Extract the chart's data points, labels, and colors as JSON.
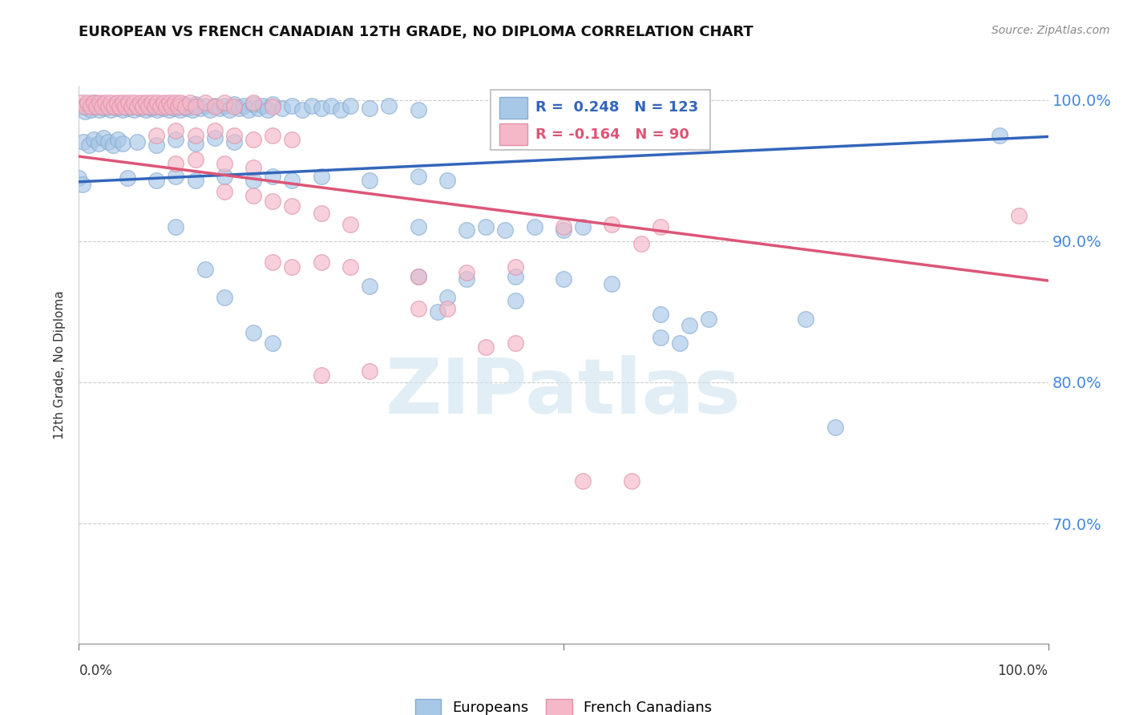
{
  "title": "EUROPEAN VS FRENCH CANADIAN 12TH GRADE, NO DIPLOMA CORRELATION CHART",
  "source": "Source: ZipAtlas.com",
  "ylabel": "12th Grade, No Diploma",
  "watermark": "ZIPatlas",
  "xlim": [
    0.0,
    1.0
  ],
  "ylim": [
    0.615,
    1.01
  ],
  "yticks": [
    0.7,
    0.8,
    0.9,
    1.0
  ],
  "ytick_labels": [
    "70.0%",
    "80.0%",
    "90.0%",
    "100.0%"
  ],
  "blue_R": 0.248,
  "blue_N": 123,
  "pink_R": -0.164,
  "pink_N": 90,
  "blue_color": "#a8c8e8",
  "pink_color": "#f4b8c8",
  "blue_edge_color": "#88aad0",
  "pink_edge_color": "#e090a8",
  "blue_line_color": "#3366bb",
  "pink_line_color": "#dd5577",
  "blue_line_y0": 0.942,
  "blue_line_y1": 0.974,
  "pink_line_y0": 0.96,
  "pink_line_y1": 0.872,
  "blue_scatter": [
    [
      0.003,
      0.995
    ],
    [
      0.006,
      0.992
    ],
    [
      0.009,
      0.997
    ],
    [
      0.012,
      0.993
    ],
    [
      0.015,
      0.998
    ],
    [
      0.018,
      0.995
    ],
    [
      0.021,
      0.993
    ],
    [
      0.024,
      0.997
    ],
    [
      0.027,
      0.994
    ],
    [
      0.03,
      0.996
    ],
    [
      0.033,
      0.993
    ],
    [
      0.036,
      0.997
    ],
    [
      0.039,
      0.994
    ],
    [
      0.042,
      0.996
    ],
    [
      0.045,
      0.993
    ],
    [
      0.048,
      0.997
    ],
    [
      0.051,
      0.994
    ],
    [
      0.054,
      0.996
    ],
    [
      0.057,
      0.993
    ],
    [
      0.06,
      0.996
    ],
    [
      0.063,
      0.994
    ],
    [
      0.066,
      0.997
    ],
    [
      0.069,
      0.993
    ],
    [
      0.072,
      0.996
    ],
    [
      0.075,
      0.994
    ],
    [
      0.078,
      0.996
    ],
    [
      0.081,
      0.993
    ],
    [
      0.084,
      0.997
    ],
    [
      0.087,
      0.994
    ],
    [
      0.09,
      0.996
    ],
    [
      0.093,
      0.993
    ],
    [
      0.096,
      0.997
    ],
    [
      0.099,
      0.994
    ],
    [
      0.102,
      0.996
    ],
    [
      0.105,
      0.993
    ],
    [
      0.108,
      0.997
    ],
    [
      0.111,
      0.994
    ],
    [
      0.114,
      0.996
    ],
    [
      0.117,
      0.993
    ],
    [
      0.12,
      0.997
    ],
    [
      0.125,
      0.994
    ],
    [
      0.13,
      0.996
    ],
    [
      0.135,
      0.993
    ],
    [
      0.14,
      0.996
    ],
    [
      0.145,
      0.994
    ],
    [
      0.15,
      0.996
    ],
    [
      0.155,
      0.993
    ],
    [
      0.16,
      0.997
    ],
    [
      0.165,
      0.994
    ],
    [
      0.17,
      0.996
    ],
    [
      0.175,
      0.993
    ],
    [
      0.18,
      0.997
    ],
    [
      0.185,
      0.994
    ],
    [
      0.19,
      0.996
    ],
    [
      0.195,
      0.993
    ],
    [
      0.2,
      0.997
    ],
    [
      0.21,
      0.994
    ],
    [
      0.22,
      0.996
    ],
    [
      0.23,
      0.993
    ],
    [
      0.24,
      0.996
    ],
    [
      0.25,
      0.994
    ],
    [
      0.26,
      0.996
    ],
    [
      0.27,
      0.993
    ],
    [
      0.28,
      0.996
    ],
    [
      0.3,
      0.994
    ],
    [
      0.32,
      0.996
    ],
    [
      0.35,
      0.993
    ],
    [
      0.005,
      0.97
    ],
    [
      0.01,
      0.968
    ],
    [
      0.015,
      0.972
    ],
    [
      0.02,
      0.969
    ],
    [
      0.025,
      0.973
    ],
    [
      0.03,
      0.97
    ],
    [
      0.035,
      0.968
    ],
    [
      0.04,
      0.972
    ],
    [
      0.045,
      0.969
    ],
    [
      0.06,
      0.97
    ],
    [
      0.08,
      0.968
    ],
    [
      0.1,
      0.972
    ],
    [
      0.12,
      0.969
    ],
    [
      0.14,
      0.973
    ],
    [
      0.16,
      0.97
    ],
    [
      0.0,
      0.945
    ],
    [
      0.004,
      0.94
    ],
    [
      0.05,
      0.945
    ],
    [
      0.08,
      0.943
    ],
    [
      0.1,
      0.946
    ],
    [
      0.12,
      0.943
    ],
    [
      0.15,
      0.946
    ],
    [
      0.18,
      0.943
    ],
    [
      0.2,
      0.946
    ],
    [
      0.22,
      0.943
    ],
    [
      0.25,
      0.946
    ],
    [
      0.3,
      0.943
    ],
    [
      0.35,
      0.946
    ],
    [
      0.38,
      0.943
    ],
    [
      0.35,
      0.91
    ],
    [
      0.4,
      0.908
    ],
    [
      0.42,
      0.91
    ],
    [
      0.44,
      0.908
    ],
    [
      0.47,
      0.91
    ],
    [
      0.5,
      0.908
    ],
    [
      0.52,
      0.91
    ],
    [
      0.35,
      0.875
    ],
    [
      0.4,
      0.873
    ],
    [
      0.45,
      0.875
    ],
    [
      0.5,
      0.873
    ],
    [
      0.55,
      0.87
    ],
    [
      0.6,
      0.848
    ],
    [
      0.65,
      0.845
    ],
    [
      0.62,
      0.828
    ],
    [
      0.75,
      0.845
    ],
    [
      0.78,
      0.768
    ],
    [
      0.95,
      0.975
    ],
    [
      0.1,
      0.91
    ],
    [
      0.13,
      0.88
    ],
    [
      0.15,
      0.86
    ],
    [
      0.37,
      0.85
    ],
    [
      0.38,
      0.86
    ],
    [
      0.45,
      0.858
    ],
    [
      0.18,
      0.835
    ],
    [
      0.2,
      0.828
    ],
    [
      0.3,
      0.868
    ],
    [
      0.6,
      0.832
    ],
    [
      0.63,
      0.84
    ]
  ],
  "pink_scatter": [
    [
      0.003,
      0.998
    ],
    [
      0.006,
      0.995
    ],
    [
      0.009,
      0.998
    ],
    [
      0.012,
      0.995
    ],
    [
      0.015,
      0.998
    ],
    [
      0.018,
      0.995
    ],
    [
      0.021,
      0.998
    ],
    [
      0.024,
      0.995
    ],
    [
      0.027,
      0.998
    ],
    [
      0.03,
      0.995
    ],
    [
      0.033,
      0.998
    ],
    [
      0.036,
      0.995
    ],
    [
      0.039,
      0.998
    ],
    [
      0.042,
      0.995
    ],
    [
      0.045,
      0.998
    ],
    [
      0.048,
      0.995
    ],
    [
      0.051,
      0.998
    ],
    [
      0.054,
      0.995
    ],
    [
      0.057,
      0.998
    ],
    [
      0.06,
      0.995
    ],
    [
      0.063,
      0.998
    ],
    [
      0.066,
      0.995
    ],
    [
      0.069,
      0.998
    ],
    [
      0.072,
      0.995
    ],
    [
      0.075,
      0.998
    ],
    [
      0.078,
      0.995
    ],
    [
      0.081,
      0.998
    ],
    [
      0.084,
      0.995
    ],
    [
      0.087,
      0.998
    ],
    [
      0.09,
      0.995
    ],
    [
      0.093,
      0.998
    ],
    [
      0.096,
      0.995
    ],
    [
      0.099,
      0.998
    ],
    [
      0.102,
      0.995
    ],
    [
      0.105,
      0.998
    ],
    [
      0.11,
      0.995
    ],
    [
      0.115,
      0.998
    ],
    [
      0.12,
      0.995
    ],
    [
      0.13,
      0.998
    ],
    [
      0.14,
      0.995
    ],
    [
      0.15,
      0.998
    ],
    [
      0.16,
      0.995
    ],
    [
      0.18,
      0.998
    ],
    [
      0.2,
      0.995
    ],
    [
      0.08,
      0.975
    ],
    [
      0.1,
      0.978
    ],
    [
      0.12,
      0.975
    ],
    [
      0.14,
      0.978
    ],
    [
      0.16,
      0.975
    ],
    [
      0.18,
      0.972
    ],
    [
      0.2,
      0.975
    ],
    [
      0.22,
      0.972
    ],
    [
      0.1,
      0.955
    ],
    [
      0.12,
      0.958
    ],
    [
      0.15,
      0.955
    ],
    [
      0.18,
      0.952
    ],
    [
      0.15,
      0.935
    ],
    [
      0.18,
      0.932
    ],
    [
      0.2,
      0.928
    ],
    [
      0.22,
      0.925
    ],
    [
      0.25,
      0.92
    ],
    [
      0.28,
      0.912
    ],
    [
      0.2,
      0.885
    ],
    [
      0.22,
      0.882
    ],
    [
      0.25,
      0.885
    ],
    [
      0.28,
      0.882
    ],
    [
      0.35,
      0.875
    ],
    [
      0.4,
      0.878
    ],
    [
      0.45,
      0.882
    ],
    [
      0.5,
      0.91
    ],
    [
      0.55,
      0.912
    ],
    [
      0.6,
      0.91
    ],
    [
      0.58,
      0.898
    ],
    [
      0.35,
      0.852
    ],
    [
      0.38,
      0.852
    ],
    [
      0.42,
      0.825
    ],
    [
      0.45,
      0.828
    ],
    [
      0.25,
      0.805
    ],
    [
      0.3,
      0.808
    ],
    [
      0.52,
      0.73
    ],
    [
      0.57,
      0.73
    ],
    [
      0.97,
      0.918
    ]
  ]
}
